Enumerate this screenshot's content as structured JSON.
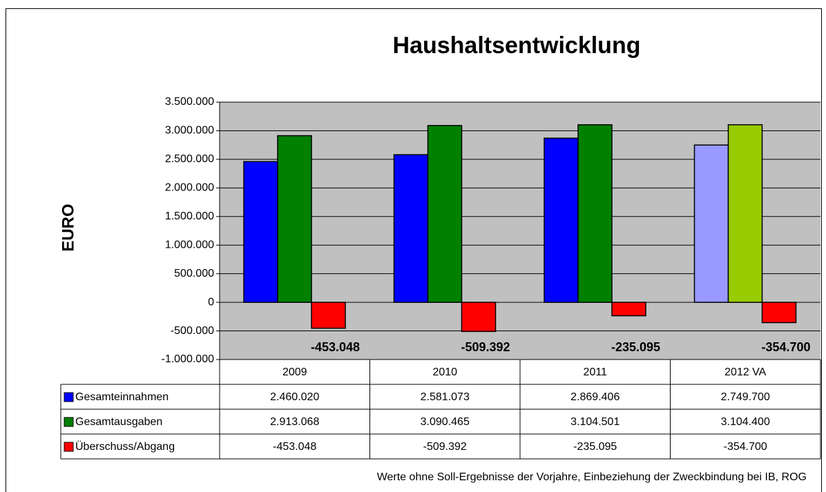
{
  "chart_data": {
    "type": "bar",
    "title": "Haushaltsentwicklung",
    "y_label": "EURO",
    "note": "Werte ohne Soll-Ergebnisse der Vorjahre, Einbeziehung der Zweckbindung bei  IB, ROG",
    "categories": [
      "2009",
      "2010",
      "2011",
      "2012 VA"
    ],
    "series": [
      {
        "name": "Gesamteinnahmen",
        "color": "#0000ff",
        "colors": [
          "#0000ff",
          "#0000ff",
          "#0000ff",
          "#9999ff"
        ],
        "values": [
          2460020,
          2581073,
          2869406,
          2749700
        ],
        "value_labels": [
          "2.460.020",
          "2.581.073",
          "2.869.406",
          "2.749.700"
        ]
      },
      {
        "name": "Gesamtausgaben",
        "color": "#008000",
        "colors": [
          "#008000",
          "#008000",
          "#008000",
          "#99cc00"
        ],
        "values": [
          2913068,
          3090465,
          3104501,
          3104400
        ],
        "value_labels": [
          "2.913.068",
          "3.090.465",
          "3.104.501",
          "3.104.400"
        ]
      },
      {
        "name": "Überschuss/Abgang",
        "color": "#ff0000",
        "colors": [
          "#ff0000",
          "#ff0000",
          "#ff0000",
          "#ff0000"
        ],
        "values": [
          -453048,
          -509392,
          -235095,
          -354700
        ],
        "value_labels": [
          "-453.048",
          "-509.392",
          "-235.095",
          "-354.700"
        ],
        "data_labels": true
      }
    ],
    "ylim": [
      -1000000,
      3500000
    ],
    "yticks": [
      {
        "value": -1000000,
        "label": "-1.000.000"
      },
      {
        "value": -500000,
        "label": "-500.000"
      },
      0,
      {
        "value": 500000,
        "label": "500.000"
      },
      {
        "value": 1000000,
        "label": "1.000.000"
      },
      {
        "value": 1500000,
        "label": "1.500.000"
      },
      {
        "value": 2000000,
        "label": "2.000.000"
      },
      {
        "value": 2500000,
        "label": "2.500.000"
      },
      {
        "value": 3000000,
        "label": "3.000.000"
      },
      {
        "value": 3500000,
        "label": "3.500.000"
      }
    ],
    "grid": true,
    "plot_background": "#c0c0c0"
  }
}
